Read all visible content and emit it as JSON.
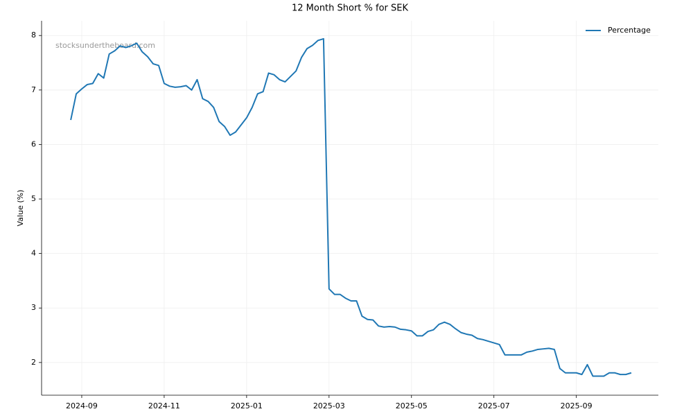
{
  "chart_data": {
    "type": "line",
    "title": "12 Month Short % for SEK",
    "y_label": "Value (%)",
    "watermark": "stocksundertheboard.com",
    "legend": "upper right",
    "grid": true,
    "categories": [
      null,
      null,
      "2024-09",
      null,
      null,
      null,
      null,
      null,
      null,
      null,
      null,
      null,
      null,
      null,
      null,
      null,
      null,
      "2024-11",
      null,
      null,
      null,
      null,
      null,
      null,
      null,
      null,
      null,
      null,
      null,
      null,
      null,
      null,
      "2025-01",
      null,
      null,
      null,
      null,
      null,
      null,
      null,
      null,
      null,
      null,
      null,
      null,
      null,
      null,
      "2025-03",
      null,
      null,
      null,
      null,
      null,
      null,
      null,
      null,
      null,
      null,
      null,
      null,
      null,
      null,
      "2025-05",
      null,
      null,
      null,
      null,
      null,
      null,
      null,
      null,
      null,
      null,
      null,
      null,
      null,
      null,
      "2025-07",
      null,
      null,
      null,
      null,
      null,
      null,
      null,
      null,
      null,
      null,
      null,
      null,
      null,
      null,
      "2025-09",
      null,
      null,
      null,
      null,
      null,
      null,
      null,
      null,
      null,
      null
    ],
    "series": [
      {
        "name": "Percentage",
        "color": "#1f77b4",
        "values": [
          6.45,
          6.93,
          7.02,
          7.1,
          7.12,
          7.3,
          7.22,
          7.66,
          7.72,
          7.81,
          7.78,
          7.81,
          7.86,
          7.7,
          7.61,
          7.48,
          7.45,
          7.12,
          7.07,
          7.05,
          7.06,
          7.08,
          7.0,
          7.19,
          6.84,
          6.79,
          6.68,
          6.42,
          6.33,
          6.17,
          6.23,
          6.36,
          6.49,
          6.68,
          6.93,
          6.97,
          7.31,
          7.28,
          7.19,
          7.15,
          7.25,
          7.35,
          7.6,
          7.76,
          7.82,
          7.91,
          7.94,
          3.35,
          3.25,
          3.25,
          3.18,
          3.13,
          3.13,
          2.85,
          2.79,
          2.78,
          2.67,
          2.65,
          2.66,
          2.65,
          2.61,
          2.6,
          2.58,
          2.49,
          2.49,
          2.57,
          2.6,
          2.7,
          2.74,
          2.7,
          2.62,
          2.55,
          2.52,
          2.5,
          2.44,
          2.42,
          2.39,
          2.36,
          2.33,
          2.14,
          2.14,
          2.14,
          2.14,
          2.19,
          2.21,
          2.24,
          2.25,
          2.26,
          2.24,
          1.89,
          1.81,
          1.81,
          1.81,
          1.78,
          1.96,
          1.75,
          1.75,
          1.75,
          1.81,
          1.81,
          1.78,
          1.78,
          1.81
        ]
      }
    ],
    "ylim": [
      1.4,
      8.27
    ],
    "yticks": [
      2,
      3,
      4,
      5,
      6,
      7,
      8
    ]
  }
}
